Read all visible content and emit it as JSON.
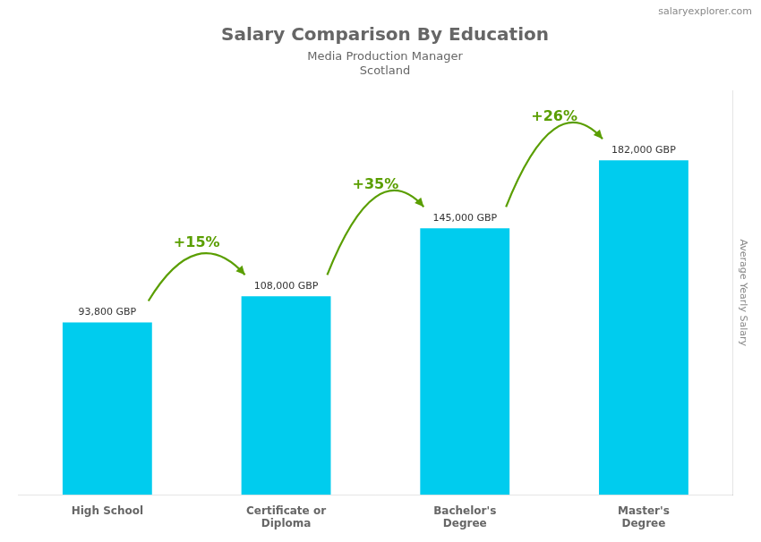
{
  "chart_data": {
    "type": "bar",
    "title": "Salary Comparison By Education",
    "subtitle": [
      "Media Production Manager",
      "Scotland"
    ],
    "watermark": "salaryexplorer.com",
    "ylabel": "Average Yearly Salary",
    "categories": [
      "High School",
      "Certificate or\nDiploma",
      "Bachelor's\nDegree",
      "Master's\nDegree"
    ],
    "values": [
      93800,
      108000,
      145000,
      182000
    ],
    "value_labels": [
      "93,800 GBP",
      "108,000 GBP",
      "145,000 GBP",
      "182,000 GBP"
    ],
    "data_labels": true,
    "annotations": [
      "+15%",
      "+35%",
      "+26%"
    ],
    "color": "#00ccee",
    "ylim": [
      0,
      220000
    ],
    "grid": false,
    "tick_labels": "x"
  }
}
